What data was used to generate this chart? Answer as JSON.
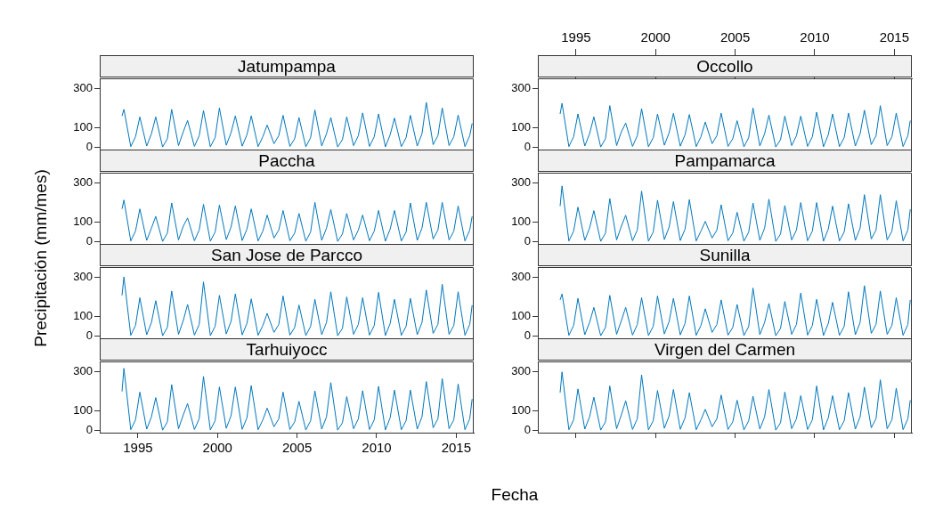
{
  "chart_data": [
    {
      "type": "line",
      "title": "Jatumpampa",
      "ylabel": "Precipitación (mm/mes)",
      "xlabel": "Fecha",
      "color": "#0077bb",
      "xlim": [
        1992.6,
        2016.1
      ],
      "tick_labels": "y",
      "ylim": [
        -10,
        350
      ],
      "yticks": [
        0,
        100,
        300
      ],
      "grid": false,
      "legend": false,
      "x": [
        1994,
        1994.12,
        1994.55,
        1994.85,
        1995.12,
        1995.55,
        1995.85,
        1996.12,
        1996.55,
        1996.85,
        1997.12,
        1997.55,
        1997.85,
        1998.12,
        1998.55,
        1998.85,
        1999.12,
        1999.55,
        1999.85,
        2000.12,
        2000.55,
        2000.85,
        2001.12,
        2001.55,
        2001.85,
        2002.12,
        2002.55,
        2002.85,
        2003.12,
        2003.55,
        2003.85,
        2004.12,
        2004.55,
        2004.85,
        2005.12,
        2005.55,
        2005.85,
        2006.12,
        2006.55,
        2006.85,
        2007.12,
        2007.55,
        2007.85,
        2008.12,
        2008.55,
        2008.85,
        2009.12,
        2009.55,
        2009.85,
        2010.12,
        2010.55,
        2010.85,
        2011.12,
        2011.55,
        2011.85,
        2012.12,
        2012.55,
        2012.85,
        2013.12,
        2013.55,
        2013.85,
        2014.12,
        2014.55,
        2014.85,
        2015.12,
        2015.55,
        2015.85,
        2016
      ],
      "values": [
        160,
        193,
        5,
        55,
        155,
        8,
        70,
        155,
        3,
        45,
        193,
        10,
        80,
        137,
        6,
        60,
        187,
        4,
        50,
        200,
        12,
        75,
        160,
        7,
        65,
        160,
        5,
        55,
        114,
        20,
        60,
        163,
        6,
        45,
        152,
        4,
        50,
        190,
        8,
        70,
        152,
        3,
        40,
        155,
        10,
        60,
        175,
        6,
        55,
        170,
        4,
        65,
        149,
        5,
        50,
        163,
        8,
        70,
        228,
        15,
        60,
        200,
        10,
        55,
        164,
        5,
        60,
        122
      ]
    },
    {
      "type": "line",
      "title": "Occollo",
      "color": "#0077bb",
      "xlim": [
        1992.6,
        2016.1
      ],
      "x2lim": [
        1992.6,
        2016.1
      ],
      "x2ticks": [
        1995,
        2000,
        2005,
        2010,
        2015
      ],
      "ylim": [
        -10,
        350
      ],
      "yticks": [
        0,
        100,
        300
      ],
      "grid": false,
      "legend": false,
      "x": [
        1994,
        1994.12,
        1994.55,
        1994.85,
        1995.12,
        1995.55,
        1995.85,
        1996.12,
        1996.55,
        1996.85,
        1997.12,
        1997.55,
        1997.85,
        1998.12,
        1998.55,
        1998.85,
        1999.12,
        1999.55,
        1999.85,
        2000.12,
        2000.55,
        2000.85,
        2001.12,
        2001.55,
        2001.85,
        2002.12,
        2002.55,
        2002.85,
        2003.12,
        2003.55,
        2003.85,
        2004.12,
        2004.55,
        2004.85,
        2005.12,
        2005.55,
        2005.85,
        2006.12,
        2006.55,
        2006.85,
        2007.12,
        2007.55,
        2007.85,
        2008.12,
        2008.55,
        2008.85,
        2009.12,
        2009.55,
        2009.85,
        2010.12,
        2010.55,
        2010.85,
        2011.12,
        2011.55,
        2011.85,
        2012.12,
        2012.55,
        2012.85,
        2013.12,
        2013.55,
        2013.85,
        2014.12,
        2014.55,
        2014.85,
        2015.12,
        2015.55,
        2015.85,
        2016
      ],
      "values": [
        170,
        224,
        5,
        55,
        170,
        8,
        70,
        155,
        3,
        45,
        212,
        10,
        80,
        124,
        6,
        60,
        197,
        4,
        50,
        170,
        12,
        75,
        173,
        7,
        65,
        167,
        5,
        55,
        129,
        20,
        60,
        174,
        6,
        45,
        136,
        4,
        50,
        200,
        8,
        70,
        164,
        3,
        40,
        159,
        10,
        60,
        159,
        6,
        55,
        179,
        4,
        65,
        170,
        5,
        50,
        174,
        8,
        70,
        189,
        15,
        60,
        212,
        10,
        55,
        174,
        5,
        60,
        136
      ]
    },
    {
      "type": "line",
      "title": "Paccha",
      "color": "#0077bb",
      "xlim": [
        1992.6,
        2016.1
      ],
      "tick_labels": "y",
      "ylim": [
        -10,
        350
      ],
      "yticks": [
        0,
        100,
        300
      ],
      "grid": false,
      "legend": false,
      "x": [
        1994,
        1994.12,
        1994.55,
        1994.85,
        1995.12,
        1995.55,
        1995.85,
        1996.12,
        1996.55,
        1996.85,
        1997.12,
        1997.55,
        1997.85,
        1998.12,
        1998.55,
        1998.85,
        1999.12,
        1999.55,
        1999.85,
        2000.12,
        2000.55,
        2000.85,
        2001.12,
        2001.55,
        2001.85,
        2002.12,
        2002.55,
        2002.85,
        2003.12,
        2003.55,
        2003.85,
        2004.12,
        2004.55,
        2004.85,
        2005.12,
        2005.55,
        2005.85,
        2006.12,
        2006.55,
        2006.85,
        2007.12,
        2007.55,
        2007.85,
        2008.12,
        2008.55,
        2008.85,
        2009.12,
        2009.55,
        2009.85,
        2010.12,
        2010.55,
        2010.85,
        2011.12,
        2011.55,
        2011.85,
        2012.12,
        2012.55,
        2012.85,
        2013.12,
        2013.55,
        2013.85,
        2014.12,
        2014.55,
        2014.85,
        2015.12,
        2015.55,
        2015.85,
        2016
      ],
      "values": [
        167,
        212,
        5,
        55,
        167,
        8,
        70,
        129,
        3,
        45,
        197,
        10,
        80,
        121,
        6,
        60,
        190,
        4,
        50,
        186,
        12,
        75,
        182,
        7,
        65,
        167,
        5,
        55,
        136,
        20,
        60,
        159,
        6,
        45,
        144,
        4,
        50,
        200,
        8,
        70,
        164,
        3,
        40,
        144,
        10,
        60,
        136,
        6,
        55,
        159,
        4,
        65,
        159,
        5,
        50,
        197,
        8,
        70,
        200,
        15,
        60,
        200,
        10,
        55,
        182,
        5,
        60,
        129
      ]
    },
    {
      "type": "line",
      "title": "Pampamarca",
      "color": "#0077bb",
      "xlim": [
        1992.6,
        2016.1
      ],
      "tick_labels": "y",
      "ylim": [
        -10,
        350
      ],
      "yticks": [
        0,
        100,
        300
      ],
      "grid": false,
      "legend": false,
      "x": [
        1994,
        1994.12,
        1994.55,
        1994.85,
        1995.12,
        1995.55,
        1995.85,
        1996.12,
        1996.55,
        1996.85,
        1997.12,
        1997.55,
        1997.85,
        1998.12,
        1998.55,
        1998.85,
        1999.12,
        1999.55,
        1999.85,
        2000.12,
        2000.55,
        2000.85,
        2001.12,
        2001.55,
        2001.85,
        2002.12,
        2002.55,
        2002.85,
        2003.12,
        2003.55,
        2003.85,
        2004.12,
        2004.55,
        2004.85,
        2005.12,
        2005.55,
        2005.85,
        2006.12,
        2006.55,
        2006.85,
        2007.12,
        2007.55,
        2007.85,
        2008.12,
        2008.55,
        2008.85,
        2009.12,
        2009.55,
        2009.85,
        2010.12,
        2010.55,
        2010.85,
        2011.12,
        2011.55,
        2011.85,
        2012.12,
        2012.55,
        2012.85,
        2013.12,
        2013.55,
        2013.85,
        2014.12,
        2014.55,
        2014.85,
        2015.12,
        2015.55,
        2015.85,
        2016
      ],
      "values": [
        181,
        283,
        5,
        55,
        176,
        8,
        70,
        158,
        3,
        45,
        219,
        10,
        80,
        135,
        6,
        60,
        257,
        4,
        50,
        211,
        12,
        75,
        204,
        7,
        65,
        214,
        5,
        55,
        104,
        20,
        60,
        188,
        6,
        45,
        150,
        4,
        50,
        196,
        8,
        70,
        216,
        3,
        40,
        184,
        10,
        60,
        199,
        6,
        55,
        199,
        4,
        65,
        181,
        5,
        50,
        193,
        8,
        70,
        239,
        15,
        60,
        239,
        10,
        55,
        208,
        5,
        60,
        165
      ]
    },
    {
      "type": "line",
      "title": "San Jose de Parcco",
      "color": "#0077bb",
      "xlim": [
        1992.6,
        2016.1
      ],
      "tick_labels": "y",
      "ylim": [
        -10,
        350
      ],
      "yticks": [
        0,
        100,
        300
      ],
      "grid": false,
      "legend": false,
      "x": [
        1994,
        1994.12,
        1994.55,
        1994.85,
        1995.12,
        1995.55,
        1995.85,
        1996.12,
        1996.55,
        1996.85,
        1997.12,
        1997.55,
        1997.85,
        1998.12,
        1998.55,
        1998.85,
        1999.12,
        1999.55,
        1999.85,
        2000.12,
        2000.55,
        2000.85,
        2001.12,
        2001.55,
        2001.85,
        2002.12,
        2002.55,
        2002.85,
        2003.12,
        2003.55,
        2003.85,
        2004.12,
        2004.55,
        2004.85,
        2005.12,
        2005.55,
        2005.85,
        2006.12,
        2006.55,
        2006.85,
        2007.12,
        2007.55,
        2007.85,
        2008.12,
        2008.55,
        2008.85,
        2009.12,
        2009.55,
        2009.85,
        2010.12,
        2010.55,
        2010.85,
        2011.12,
        2011.55,
        2011.85,
        2012.12,
        2012.55,
        2012.85,
        2013.12,
        2013.55,
        2013.85,
        2014.12,
        2014.55,
        2014.85,
        2015.12,
        2015.55,
        2015.85,
        2016
      ],
      "values": [
        207,
        300,
        5,
        55,
        195,
        8,
        70,
        180,
        3,
        45,
        229,
        10,
        80,
        161,
        6,
        60,
        275,
        4,
        50,
        207,
        12,
        75,
        214,
        7,
        65,
        189,
        5,
        55,
        116,
        20,
        60,
        204,
        6,
        45,
        158,
        4,
        50,
        187,
        8,
        70,
        225,
        3,
        40,
        199,
        10,
        60,
        195,
        6,
        55,
        222,
        4,
        65,
        187,
        5,
        50,
        192,
        8,
        70,
        234,
        15,
        60,
        263,
        10,
        55,
        225,
        5,
        60,
        157
      ]
    },
    {
      "type": "line",
      "title": "Sunilla",
      "color": "#0077bb",
      "xlim": [
        1992.6,
        2016.1
      ],
      "tick_labels": "y",
      "ylim": [
        -10,
        350
      ],
      "yticks": [
        0,
        100,
        300
      ],
      "grid": false,
      "legend": false,
      "x": [
        1994,
        1994.12,
        1994.55,
        1994.85,
        1995.12,
        1995.55,
        1995.85,
        1996.12,
        1996.55,
        1996.85,
        1997.12,
        1997.55,
        1997.85,
        1998.12,
        1998.55,
        1998.85,
        1999.12,
        1999.55,
        1999.85,
        2000.12,
        2000.55,
        2000.85,
        2001.12,
        2001.55,
        2001.85,
        2002.12,
        2002.55,
        2002.85,
        2003.12,
        2003.55,
        2003.85,
        2004.12,
        2004.55,
        2004.85,
        2005.12,
        2005.55,
        2005.85,
        2006.12,
        2006.55,
        2006.85,
        2007.12,
        2007.55,
        2007.85,
        2008.12,
        2008.55,
        2008.85,
        2009.12,
        2009.55,
        2009.85,
        2010.12,
        2010.55,
        2010.85,
        2011.12,
        2011.55,
        2011.85,
        2012.12,
        2012.55,
        2012.85,
        2013.12,
        2013.55,
        2013.85,
        2014.12,
        2014.55,
        2014.85,
        2015.12,
        2015.55,
        2015.85,
        2016
      ],
      "values": [
        184,
        214,
        5,
        55,
        192,
        8,
        70,
        146,
        3,
        45,
        207,
        10,
        80,
        146,
        6,
        60,
        195,
        4,
        50,
        204,
        12,
        75,
        192,
        7,
        65,
        204,
        5,
        55,
        139,
        20,
        60,
        184,
        6,
        45,
        161,
        4,
        50,
        244,
        8,
        70,
        166,
        3,
        40,
        176,
        10,
        60,
        219,
        6,
        55,
        187,
        4,
        65,
        172,
        5,
        50,
        225,
        8,
        70,
        256,
        15,
        60,
        229,
        10,
        55,
        195,
        5,
        60,
        184
      ]
    },
    {
      "type": "line",
      "title": "Tarhuiyocc",
      "color": "#0077bb",
      "xlim": [
        1992.6,
        2016.1
      ],
      "xticks": [
        1995,
        2000,
        2005,
        2010,
        2015
      ],
      "ylim": [
        -10,
        350
      ],
      "yticks": [
        0,
        100,
        300
      ],
      "grid": false,
      "legend": false,
      "x": [
        1994,
        1994.12,
        1994.55,
        1994.85,
        1995.12,
        1995.55,
        1995.85,
        1996.12,
        1996.55,
        1996.85,
        1997.12,
        1997.55,
        1997.85,
        1998.12,
        1998.55,
        1998.85,
        1999.12,
        1999.55,
        1999.85,
        2000.12,
        2000.55,
        2000.85,
        2001.12,
        2001.55,
        2001.85,
        2002.12,
        2002.55,
        2002.85,
        2003.12,
        2003.55,
        2003.85,
        2004.12,
        2004.55,
        2004.85,
        2005.12,
        2005.55,
        2005.85,
        2006.12,
        2006.55,
        2006.85,
        2007.12,
        2007.55,
        2007.85,
        2008.12,
        2008.55,
        2008.85,
        2009.12,
        2009.55,
        2009.85,
        2010.12,
        2010.55,
        2010.85,
        2011.12,
        2011.55,
        2011.85,
        2012.12,
        2012.55,
        2012.85,
        2013.12,
        2013.55,
        2013.85,
        2014.12,
        2014.55,
        2014.85,
        2015.12,
        2015.55,
        2015.85,
        2016
      ],
      "values": [
        198,
        315,
        5,
        55,
        195,
        8,
        70,
        167,
        3,
        45,
        233,
        10,
        80,
        137,
        6,
        60,
        274,
        4,
        50,
        221,
        12,
        75,
        221,
        7,
        65,
        228,
        5,
        55,
        114,
        20,
        60,
        195,
        6,
        45,
        148,
        4,
        50,
        201,
        8,
        70,
        243,
        3,
        40,
        172,
        10,
        60,
        202,
        6,
        55,
        224,
        4,
        65,
        205,
        5,
        50,
        205,
        8,
        70,
        248,
        15,
        60,
        263,
        10,
        55,
        236,
        5,
        60,
        160
      ]
    },
    {
      "type": "line",
      "title": "Virgen del Carmen",
      "color": "#0077bb",
      "xlim": [
        1992.6,
        2016.1
      ],
      "xticks": [
        {
          "value": 1995,
          "label": null
        },
        {
          "value": 2000,
          "label": null
        },
        {
          "value": 2005,
          "label": null
        },
        {
          "value": 2010,
          "label": null
        },
        {
          "value": 2015,
          "label": null
        }
      ],
      "tick_labels": "y",
      "ylim": [
        -10,
        350
      ],
      "yticks": [
        0,
        100,
        300
      ],
      "grid": false,
      "legend": false,
      "x": [
        1994,
        1994.12,
        1994.55,
        1994.85,
        1995.12,
        1995.55,
        1995.85,
        1996.12,
        1996.55,
        1996.85,
        1997.12,
        1997.55,
        1997.85,
        1998.12,
        1998.55,
        1998.85,
        1999.12,
        1999.55,
        1999.85,
        2000.12,
        2000.55,
        2000.85,
        2001.12,
        2001.55,
        2001.85,
        2002.12,
        2002.55,
        2002.85,
        2003.12,
        2003.55,
        2003.85,
        2004.12,
        2004.55,
        2004.85,
        2005.12,
        2005.55,
        2005.85,
        2006.12,
        2006.55,
        2006.85,
        2007.12,
        2007.55,
        2007.85,
        2008.12,
        2008.55,
        2008.85,
        2009.12,
        2009.55,
        2009.85,
        2010.12,
        2010.55,
        2010.85,
        2011.12,
        2011.55,
        2011.85,
        2012.12,
        2012.55,
        2012.85,
        2013.12,
        2013.55,
        2013.85,
        2014.12,
        2014.55,
        2014.85,
        2015.12,
        2015.55,
        2015.85,
        2016
      ],
      "values": [
        192,
        297,
        5,
        55,
        211,
        8,
        70,
        169,
        3,
        45,
        226,
        10,
        80,
        151,
        6,
        60,
        282,
        4,
        50,
        203,
        12,
        75,
        208,
        7,
        65,
        192,
        5,
        55,
        108,
        20,
        60,
        180,
        6,
        45,
        154,
        4,
        50,
        174,
        8,
        70,
        208,
        3,
        40,
        195,
        10,
        60,
        177,
        6,
        55,
        226,
        4,
        65,
        177,
        5,
        50,
        192,
        8,
        70,
        220,
        15,
        60,
        257,
        10,
        55,
        215,
        5,
        60,
        154
      ]
    }
  ]
}
